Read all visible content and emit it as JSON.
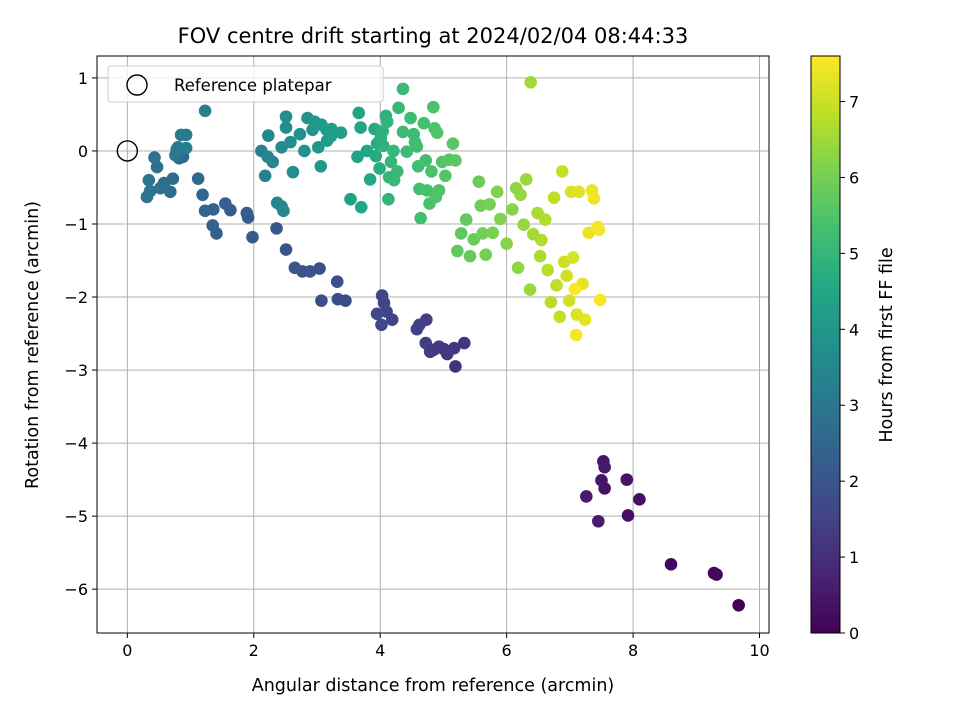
{
  "chart_data": {
    "type": "scatter",
    "title": "FOV centre drift starting at 2024/02/04 08:44:33",
    "xlabel": "Angular distance from reference (arcmin)",
    "ylabel": "Rotation from reference (arcmin)",
    "xlim": [
      -0.48,
      10.15
    ],
    "ylim": [
      -6.6,
      1.3
    ],
    "xticks": [
      0,
      2,
      4,
      6,
      8,
      10
    ],
    "yticks": [
      1,
      0,
      -1,
      -2,
      -3,
      -4,
      -5,
      -6
    ],
    "grid": true,
    "colormap": "viridis",
    "colorbar": {
      "label": "Hours from first FF file",
      "range": [
        0,
        7.6
      ],
      "ticks": [
        0,
        1,
        2,
        3,
        4,
        5,
        6,
        7
      ]
    },
    "legend": {
      "position": "top-left",
      "entries": [
        {
          "label": "Reference platepar",
          "marker": "open-circle"
        }
      ]
    },
    "reference_point": {
      "x": 0,
      "y": 0
    },
    "points": [
      [
        9.67,
        -6.22,
        0.03
      ],
      [
        9.32,
        -5.8,
        0.08
      ],
      [
        9.28,
        -5.78,
        0.12
      ],
      [
        8.6,
        -5.66,
        0.2
      ],
      [
        7.92,
        -4.99,
        0.28
      ],
      [
        8.1,
        -4.77,
        0.34
      ],
      [
        7.9,
        -4.5,
        0.38
      ],
      [
        7.55,
        -4.62,
        0.42
      ],
      [
        7.5,
        -4.51,
        0.46
      ],
      [
        7.53,
        -4.25,
        0.5
      ],
      [
        7.55,
        -4.33,
        0.52
      ],
      [
        7.26,
        -4.73,
        0.56
      ],
      [
        7.45,
        -5.07,
        0.6
      ],
      [
        5.19,
        -2.95,
        1.1
      ],
      [
        5.33,
        -2.63,
        1.14
      ],
      [
        5.17,
        -2.7,
        1.18
      ],
      [
        5.06,
        -2.78,
        1.2
      ],
      [
        5.0,
        -2.71,
        1.24
      ],
      [
        4.93,
        -2.68,
        1.26
      ],
      [
        4.85,
        -2.72,
        1.3
      ],
      [
        4.79,
        -2.75,
        1.34
      ],
      [
        4.72,
        -2.63,
        1.38
      ],
      [
        4.73,
        -2.31,
        1.42
      ],
      [
        4.62,
        -2.38,
        1.46
      ],
      [
        4.58,
        -2.44,
        1.48
      ],
      [
        4.19,
        -2.31,
        1.52
      ],
      [
        4.1,
        -2.2,
        1.56
      ],
      [
        4.06,
        -2.08,
        1.58
      ],
      [
        4.03,
        -1.98,
        1.6
      ],
      [
        4.02,
        -2.38,
        1.64
      ],
      [
        3.95,
        -2.23,
        1.68
      ],
      [
        3.45,
        -2.05,
        1.72
      ],
      [
        3.33,
        -2.03,
        1.76
      ],
      [
        3.32,
        -1.79,
        1.8
      ],
      [
        3.07,
        -2.05,
        1.84
      ],
      [
        3.04,
        -1.61,
        1.88
      ],
      [
        2.89,
        -1.65,
        1.92
      ],
      [
        2.77,
        -1.65,
        1.96
      ],
      [
        2.65,
        -1.6,
        2.0
      ],
      [
        2.51,
        -1.35,
        2.04
      ],
      [
        2.36,
        -1.06,
        2.08
      ],
      [
        1.98,
        -1.18,
        2.12
      ],
      [
        1.91,
        -0.91,
        2.16
      ],
      [
        1.89,
        -0.85,
        2.2
      ],
      [
        1.63,
        -0.81,
        2.24
      ],
      [
        1.55,
        -0.72,
        2.28
      ],
      [
        1.41,
        -1.13,
        2.32
      ],
      [
        1.35,
        -1.02,
        2.36
      ],
      [
        1.36,
        -0.8,
        2.4
      ],
      [
        1.23,
        -0.82,
        2.44
      ],
      [
        1.19,
        -0.6,
        2.48
      ],
      [
        1.12,
        -0.38,
        2.52
      ],
      [
        0.88,
        -0.08,
        2.56
      ],
      [
        0.82,
        -0.1,
        2.6
      ],
      [
        0.72,
        -0.38,
        2.64
      ],
      [
        0.68,
        -0.56,
        2.68
      ],
      [
        0.58,
        -0.44,
        2.72
      ],
      [
        0.52,
        -0.51,
        2.76
      ],
      [
        0.47,
        -0.22,
        2.8
      ],
      [
        0.43,
        -0.09,
        2.84
      ],
      [
        0.36,
        -0.55,
        2.88
      ],
      [
        0.34,
        -0.4,
        2.92
      ],
      [
        0.31,
        -0.63,
        2.96
      ],
      [
        0.76,
        -0.06,
        3.0
      ],
      [
        0.78,
        0.02,
        3.04
      ],
      [
        0.8,
        0.05,
        3.08
      ],
      [
        0.85,
        0.22,
        3.12
      ],
      [
        0.93,
        0.22,
        3.16
      ],
      [
        0.93,
        0.04,
        3.2
      ],
      [
        1.23,
        0.55,
        3.24
      ],
      [
        2.12,
        0.0,
        3.3
      ],
      [
        2.18,
        -0.34,
        3.34
      ],
      [
        2.22,
        -0.08,
        3.38
      ],
      [
        2.3,
        -0.15,
        3.42
      ],
      [
        2.37,
        -0.71,
        3.46
      ],
      [
        2.44,
        -0.76,
        3.5
      ],
      [
        2.47,
        -0.82,
        3.52
      ],
      [
        2.23,
        0.21,
        3.56
      ],
      [
        2.44,
        0.05,
        3.6
      ],
      [
        2.51,
        0.32,
        3.64
      ],
      [
        2.51,
        0.47,
        3.68
      ],
      [
        2.58,
        0.12,
        3.72
      ],
      [
        2.62,
        -0.29,
        3.76
      ],
      [
        2.73,
        0.23,
        3.8
      ],
      [
        2.8,
        0.0,
        3.84
      ],
      [
        2.85,
        0.45,
        3.88
      ],
      [
        2.93,
        0.29,
        3.92
      ],
      [
        2.96,
        0.4,
        3.96
      ],
      [
        3.02,
        0.05,
        4.0
      ],
      [
        3.06,
        -0.21,
        4.04
      ],
      [
        3.07,
        0.36,
        4.08
      ],
      [
        3.15,
        0.29,
        4.12
      ],
      [
        3.16,
        0.14,
        4.16
      ],
      [
        3.22,
        0.2,
        4.2
      ],
      [
        3.23,
        0.3,
        4.24
      ],
      [
        3.38,
        0.25,
        4.28
      ],
      [
        3.53,
        -0.66,
        4.32
      ],
      [
        3.64,
        -0.08,
        4.36
      ],
      [
        3.66,
        0.52,
        4.4
      ],
      [
        3.69,
        0.32,
        4.44
      ],
      [
        3.7,
        -0.77,
        4.48
      ],
      [
        3.79,
        0.0,
        4.52
      ],
      [
        3.84,
        -0.39,
        4.56
      ],
      [
        3.91,
        0.3,
        4.6
      ],
      [
        3.93,
        -0.07,
        4.64
      ],
      [
        3.95,
        0.1,
        4.68
      ],
      [
        3.99,
        -0.24,
        4.72
      ],
      [
        4.01,
        0.18,
        4.76
      ],
      [
        4.04,
        0.27,
        4.8
      ],
      [
        4.05,
        0.07,
        4.84
      ],
      [
        4.09,
        0.48,
        4.88
      ],
      [
        4.11,
        0.4,
        4.92
      ],
      [
        4.13,
        -0.66,
        4.96
      ],
      [
        4.14,
        -0.36,
        5.0
      ],
      [
        4.17,
        -0.15,
        5.02
      ],
      [
        4.21,
        0.0,
        5.04
      ],
      [
        4.22,
        -0.4,
        5.06
      ],
      [
        4.27,
        -0.28,
        5.08
      ],
      [
        4.29,
        0.59,
        5.1
      ],
      [
        4.36,
        0.85,
        5.12
      ],
      [
        4.36,
        0.26,
        5.14
      ],
      [
        4.42,
        -0.01,
        5.16
      ],
      [
        4.48,
        0.45,
        5.18
      ],
      [
        4.53,
        0.23,
        5.2
      ],
      [
        4.55,
        0.12,
        5.22
      ],
      [
        4.58,
        0.06,
        5.24
      ],
      [
        4.6,
        -0.21,
        5.26
      ],
      [
        4.62,
        -0.52,
        5.28
      ],
      [
        4.64,
        -0.92,
        5.3
      ],
      [
        4.69,
        0.38,
        5.32
      ],
      [
        4.72,
        -0.13,
        5.34
      ],
      [
        4.74,
        -0.54,
        5.36
      ],
      [
        4.78,
        -0.72,
        5.38
      ],
      [
        4.81,
        -0.28,
        5.4
      ],
      [
        4.84,
        0.6,
        5.42
      ],
      [
        4.86,
        0.31,
        5.44
      ],
      [
        4.88,
        -0.63,
        5.46
      ],
      [
        4.9,
        0.25,
        5.48
      ],
      [
        4.93,
        -0.54,
        5.5
      ],
      [
        4.98,
        -0.15,
        5.52
      ],
      [
        5.03,
        -0.34,
        5.54
      ],
      [
        5.09,
        -0.12,
        5.56
      ],
      [
        5.15,
        0.1,
        5.6
      ],
      [
        5.19,
        -0.13,
        5.64
      ],
      [
        5.22,
        -1.37,
        5.68
      ],
      [
        5.28,
        -1.13,
        5.72
      ],
      [
        5.36,
        -0.94,
        5.76
      ],
      [
        5.42,
        -1.44,
        5.8
      ],
      [
        5.48,
        -1.21,
        5.84
      ],
      [
        5.56,
        -0.42,
        5.88
      ],
      [
        5.59,
        -0.75,
        5.92
      ],
      [
        5.62,
        -1.13,
        5.96
      ],
      [
        5.67,
        -1.42,
        6.0
      ],
      [
        5.73,
        -0.73,
        6.04
      ],
      [
        5.78,
        -1.12,
        6.08
      ],
      [
        5.85,
        -0.56,
        6.12
      ],
      [
        5.9,
        -0.93,
        6.16
      ],
      [
        6.0,
        -1.27,
        6.2
      ],
      [
        6.09,
        -0.8,
        6.24
      ],
      [
        6.15,
        -0.51,
        6.28
      ],
      [
        6.18,
        -1.6,
        6.32
      ],
      [
        6.22,
        -0.6,
        6.36
      ],
      [
        6.27,
        -1.01,
        6.4
      ],
      [
        6.31,
        -0.39,
        6.44
      ],
      [
        6.37,
        -1.9,
        6.48
      ],
      [
        6.38,
        0.94,
        6.52
      ],
      [
        6.42,
        -1.14,
        6.56
      ],
      [
        6.49,
        -0.85,
        6.6
      ],
      [
        6.53,
        -1.44,
        6.64
      ],
      [
        6.55,
        -1.22,
        6.68
      ],
      [
        6.61,
        -0.94,
        6.72
      ],
      [
        6.65,
        -1.63,
        6.76
      ],
      [
        6.7,
        -2.07,
        6.8
      ],
      [
        6.75,
        -0.64,
        6.84
      ],
      [
        6.79,
        -1.84,
        6.88
      ],
      [
        6.84,
        -2.27,
        6.92
      ],
      [
        6.88,
        -0.28,
        6.96
      ],
      [
        6.91,
        -1.52,
        7.0
      ],
      [
        6.95,
        -1.71,
        7.04
      ],
      [
        6.99,
        -2.05,
        7.08
      ],
      [
        7.02,
        -0.56,
        7.12
      ],
      [
        7.05,
        -1.46,
        7.16
      ],
      [
        7.11,
        -2.24,
        7.2
      ],
      [
        7.14,
        -0.56,
        7.24
      ],
      [
        7.2,
        -1.82,
        7.28
      ],
      [
        7.24,
        -2.31,
        7.32
      ],
      [
        7.3,
        -1.12,
        7.36
      ],
      [
        7.35,
        -0.54,
        7.4
      ],
      [
        7.38,
        -0.65,
        7.44
      ],
      [
        7.44,
        -1.04,
        7.48
      ],
      [
        7.46,
        -1.08,
        7.5
      ],
      [
        7.48,
        -2.04,
        7.52
      ],
      [
        7.1,
        -2.52,
        7.54
      ],
      [
        7.08,
        -1.89,
        7.56
      ]
    ]
  }
}
